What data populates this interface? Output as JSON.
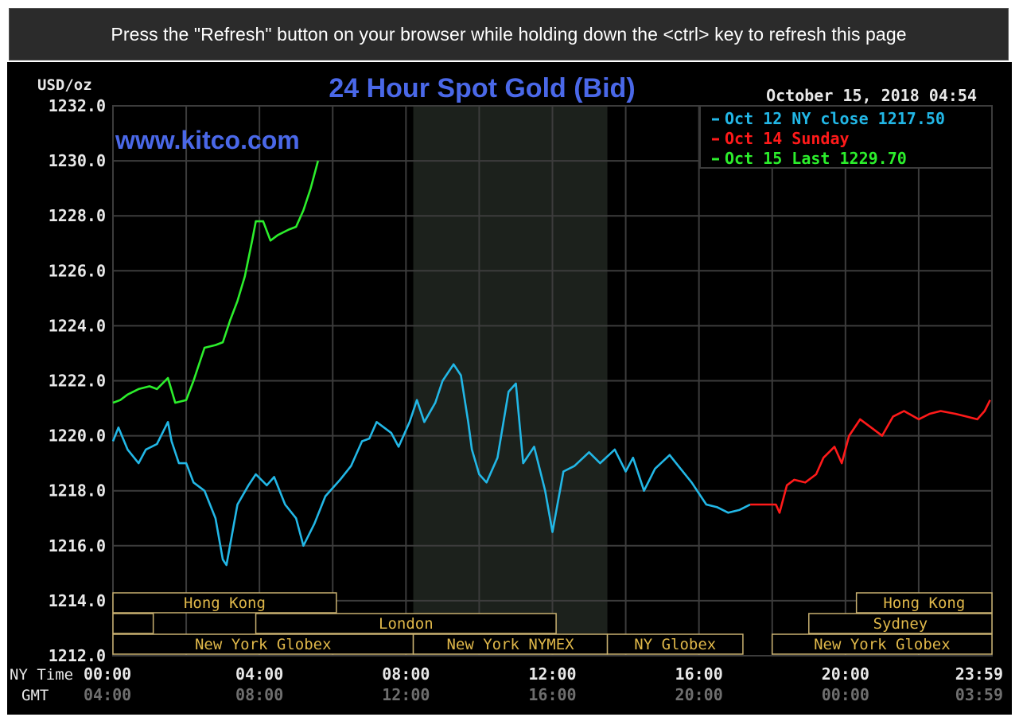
{
  "banner": {
    "message": "Press the \"Refresh\" button on your browser while holding down the <ctrl> key to refresh this page"
  },
  "colors": {
    "background": "#000000",
    "grid": "#3c3c3c",
    "axis_text": "#e8e8e8",
    "gmt_text": "#6e6e6e",
    "title": "#4a68e8",
    "watermark": "#4a68e8",
    "session_border": "#c8b070",
    "session_text": "#e0b84a",
    "shade": "#1c211c",
    "oct12": "#22b7e6",
    "oct14": "#ff1a1a",
    "oct15": "#2cee2c"
  },
  "chart_data": {
    "type": "line",
    "title": "24 Hour Spot Gold (Bid)",
    "ylabel": "USD/oz",
    "watermark": "www.kitco.com",
    "timestamp": "October 15, 2018 04:54",
    "ylim": [
      1212,
      1232
    ],
    "xlim_hours": [
      0,
      24
    ],
    "grid": true,
    "legend_position": "top-right",
    "y_ticks": [
      "1232.0",
      "1230.0",
      "1228.0",
      "1226.0",
      "1224.0",
      "1222.0",
      "1220.0",
      "1218.0",
      "1216.0",
      "1214.0",
      "1212.0"
    ],
    "x_axis_rows": [
      {
        "label": "NY Time",
        "ticks": [
          "00:00",
          "04:00",
          "08:00",
          "12:00",
          "16:00",
          "20:00",
          "23:59"
        ]
      },
      {
        "label": "GMT",
        "ticks": [
          "04:00",
          "08:00",
          "12:00",
          "16:00",
          "20:00",
          "00:00",
          "03:59"
        ]
      }
    ],
    "legend": [
      {
        "label": "Oct 12 NY close 1217.50",
        "color": "#22b7e6"
      },
      {
        "label": "Oct 14 Sunday",
        "color": "#ff1a1a"
      },
      {
        "label": "Oct 15 Last 1229.70",
        "color": "#2cee2c"
      }
    ],
    "shaded_region_hours": [
      8.2,
      13.5
    ],
    "series": [
      {
        "color": "#22b7e6",
        "x": [
          0,
          0.15,
          0.4,
          0.7,
          0.9,
          1.2,
          1.5,
          1.6,
          1.8,
          2.0,
          2.2,
          2.5,
          2.8,
          3.0,
          3.1,
          3.4,
          3.7,
          3.9,
          4.2,
          4.4,
          4.7,
          5.0,
          5.2,
          5.5,
          5.8,
          6.2,
          6.5,
          6.8,
          7.0,
          7.2,
          7.4,
          7.6,
          7.8,
          8.1,
          8.3,
          8.5,
          8.8,
          9.0,
          9.3,
          9.5,
          9.7,
          9.8,
          10.0,
          10.2,
          10.5,
          10.8,
          11.0,
          11.2,
          11.5,
          11.8,
          12.0,
          12.3,
          12.6,
          13.0,
          13.3,
          13.7,
          14.0,
          14.2,
          14.5,
          14.8,
          15.2,
          15.5,
          15.8,
          16.2,
          16.5,
          16.8,
          17.1,
          17.4
        ],
        "y": [
          1219.8,
          1220.3,
          1219.5,
          1219.0,
          1219.5,
          1219.7,
          1220.5,
          1219.8,
          1219.0,
          1219.0,
          1218.3,
          1218.0,
          1217.0,
          1215.5,
          1215.3,
          1217.5,
          1218.2,
          1218.6,
          1218.2,
          1218.5,
          1217.5,
          1217.0,
          1216.0,
          1216.8,
          1217.8,
          1218.4,
          1218.9,
          1219.8,
          1219.9,
          1220.5,
          1220.3,
          1220.1,
          1219.6,
          1220.5,
          1221.3,
          1220.5,
          1221.2,
          1222.0,
          1222.6,
          1222.2,
          1220.5,
          1219.5,
          1218.6,
          1218.3,
          1219.2,
          1221.6,
          1221.9,
          1219.0,
          1219.6,
          1218.0,
          1216.5,
          1218.7,
          1218.9,
          1219.4,
          1219.0,
          1219.5,
          1218.7,
          1219.2,
          1218.0,
          1218.8,
          1219.3,
          1218.8,
          1218.3,
          1217.5,
          1217.4,
          1217.2,
          1217.3,
          1217.5
        ]
      },
      {
        "color": "#ff1a1a",
        "x": [
          17.4,
          17.9,
          18.1,
          18.2,
          18.4,
          18.6,
          18.9,
          19.2,
          19.4,
          19.7,
          19.9,
          20.1,
          20.4,
          20.7,
          21.0,
          21.3,
          21.6,
          22.0,
          22.3,
          22.6,
          23.0,
          23.3,
          23.6,
          23.8,
          23.95
        ],
        "y": [
          1217.5,
          1217.5,
          1217.5,
          1217.2,
          1218.2,
          1218.4,
          1218.3,
          1218.6,
          1219.2,
          1219.6,
          1219.0,
          1220.0,
          1220.6,
          1220.3,
          1220.0,
          1220.7,
          1220.9,
          1220.6,
          1220.8,
          1220.9,
          1220.8,
          1220.7,
          1220.6,
          1220.9,
          1221.3
        ]
      },
      {
        "color": "#2cee2c",
        "x": [
          0,
          0.2,
          0.4,
          0.7,
          1.0,
          1.2,
          1.5,
          1.7,
          2.0,
          2.2,
          2.5,
          2.8,
          3.0,
          3.2,
          3.4,
          3.6,
          3.8,
          3.9,
          4.1,
          4.3,
          4.5,
          4.8,
          5.0,
          5.2,
          5.4,
          5.6
        ],
        "y": [
          1221.2,
          1221.3,
          1221.5,
          1221.7,
          1221.8,
          1221.7,
          1222.1,
          1221.2,
          1221.3,
          1222.0,
          1223.2,
          1223.3,
          1223.4,
          1224.2,
          1224.9,
          1225.8,
          1227.1,
          1227.8,
          1227.8,
          1227.1,
          1227.3,
          1227.5,
          1227.6,
          1228.2,
          1229.0,
          1230.0
        ]
      }
    ],
    "sessions": [
      {
        "label": "Hong Kong",
        "row": 0,
        "start": 0,
        "end": 6.1
      },
      {
        "label": "",
        "row": 1,
        "start": 0,
        "end": 1.1
      },
      {
        "label": "London",
        "row": 1,
        "start": 3.9,
        "end": 12.1
      },
      {
        "label": "New York Globex",
        "row": 2,
        "start": 0,
        "end": 8.2
      },
      {
        "label": "New York NYMEX",
        "row": 2,
        "start": 8.2,
        "end": 13.5
      },
      {
        "label": "NY Globex",
        "row": 2,
        "start": 13.5,
        "end": 17.2
      },
      {
        "label": "Hong Kong",
        "row": 0,
        "start": 20.3,
        "end": 24
      },
      {
        "label": "Sydney",
        "row": 1,
        "start": 19.0,
        "end": 24
      },
      {
        "label": "New York Globex",
        "row": 2,
        "start": 18.0,
        "end": 24
      }
    ]
  }
}
